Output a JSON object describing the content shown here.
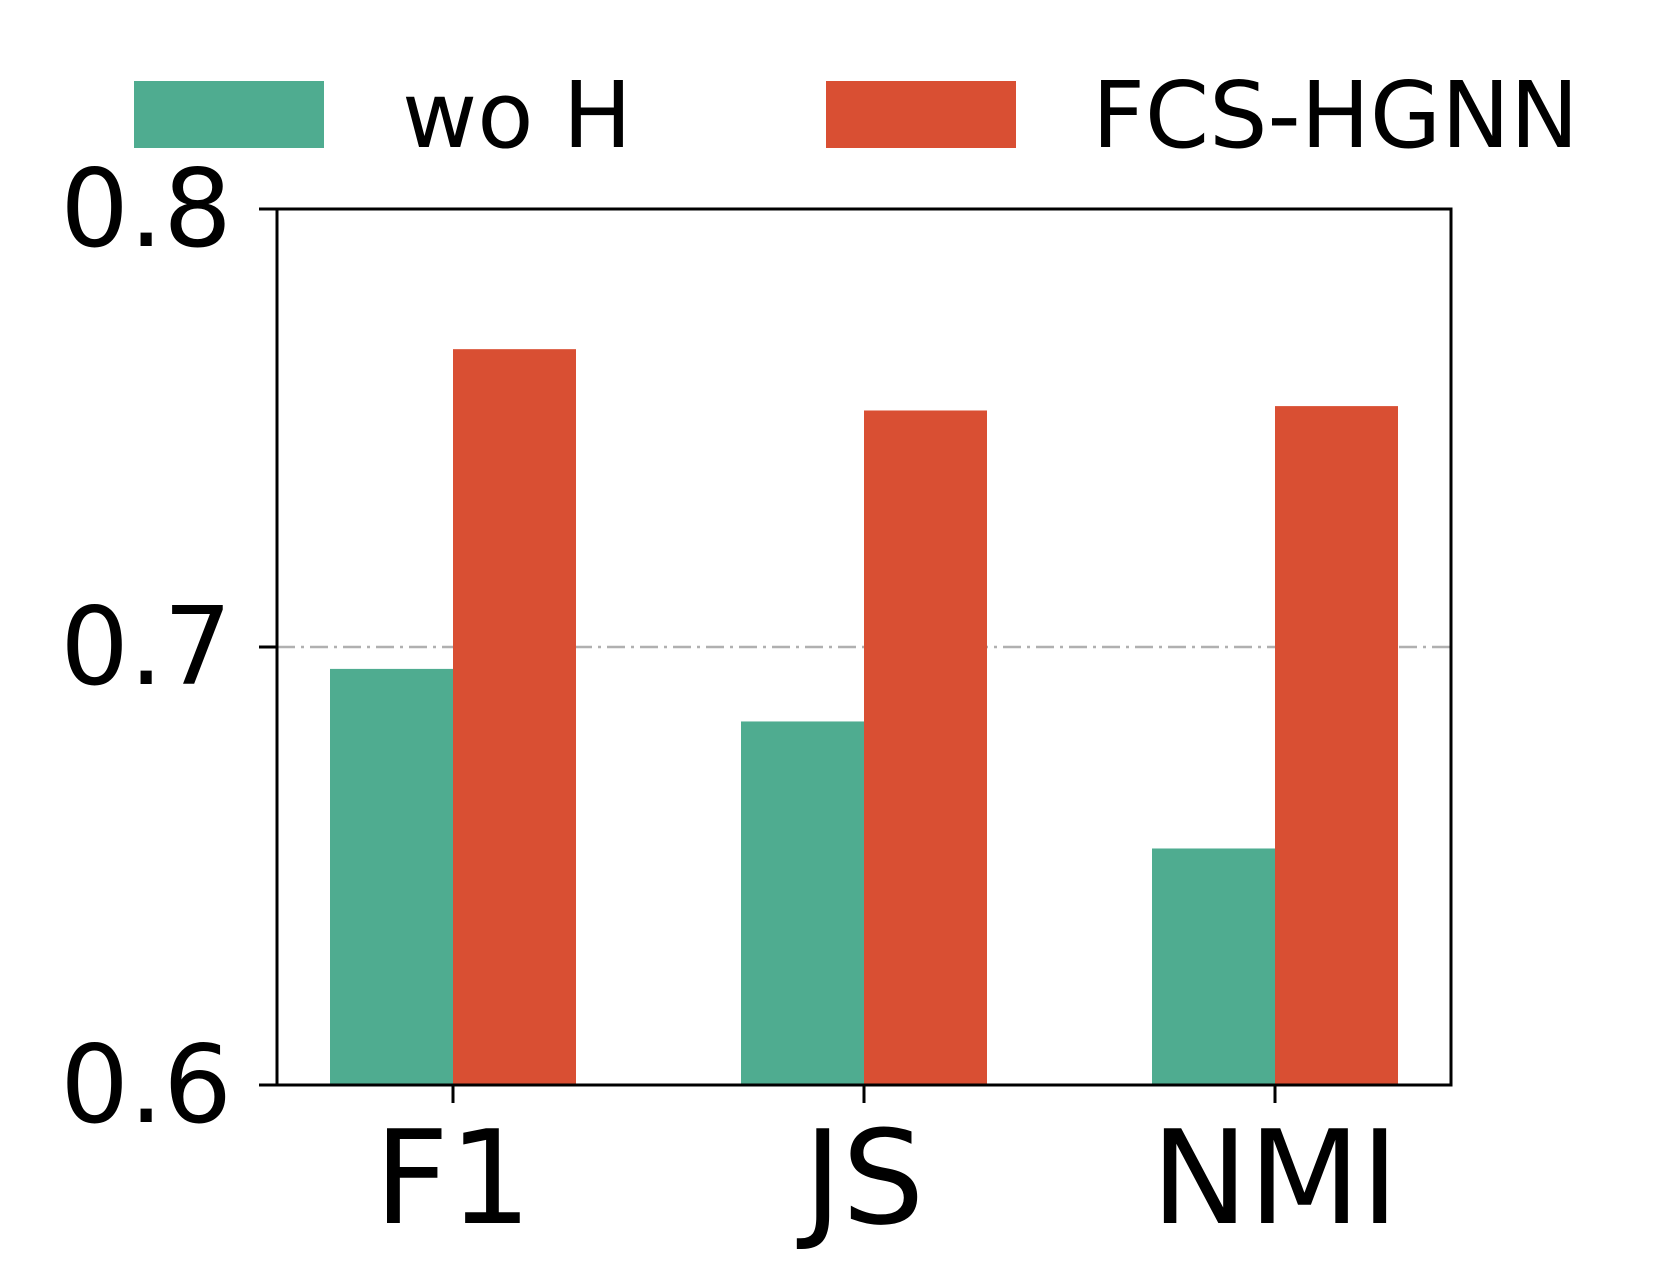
{
  "chart_data": {
    "type": "bar",
    "categories": [
      "F1",
      "JS",
      "NMI"
    ],
    "series": [
      {
        "name": "wo H",
        "values": [
          0.695,
          0.683,
          0.654
        ],
        "color": "#4fac90"
      },
      {
        "name": "FCS-HGNN",
        "values": [
          0.768,
          0.754,
          0.755
        ],
        "color": "#d94f33"
      }
    ],
    "ylim": [
      0.6,
      0.8
    ],
    "yticks": [
      "0.6",
      "0.7",
      "0.8"
    ],
    "reference_line": {
      "y": 0.7,
      "style": "dash-dot",
      "color": "#b0b0b0"
    },
    "legend_position": "top",
    "grid": false
  }
}
